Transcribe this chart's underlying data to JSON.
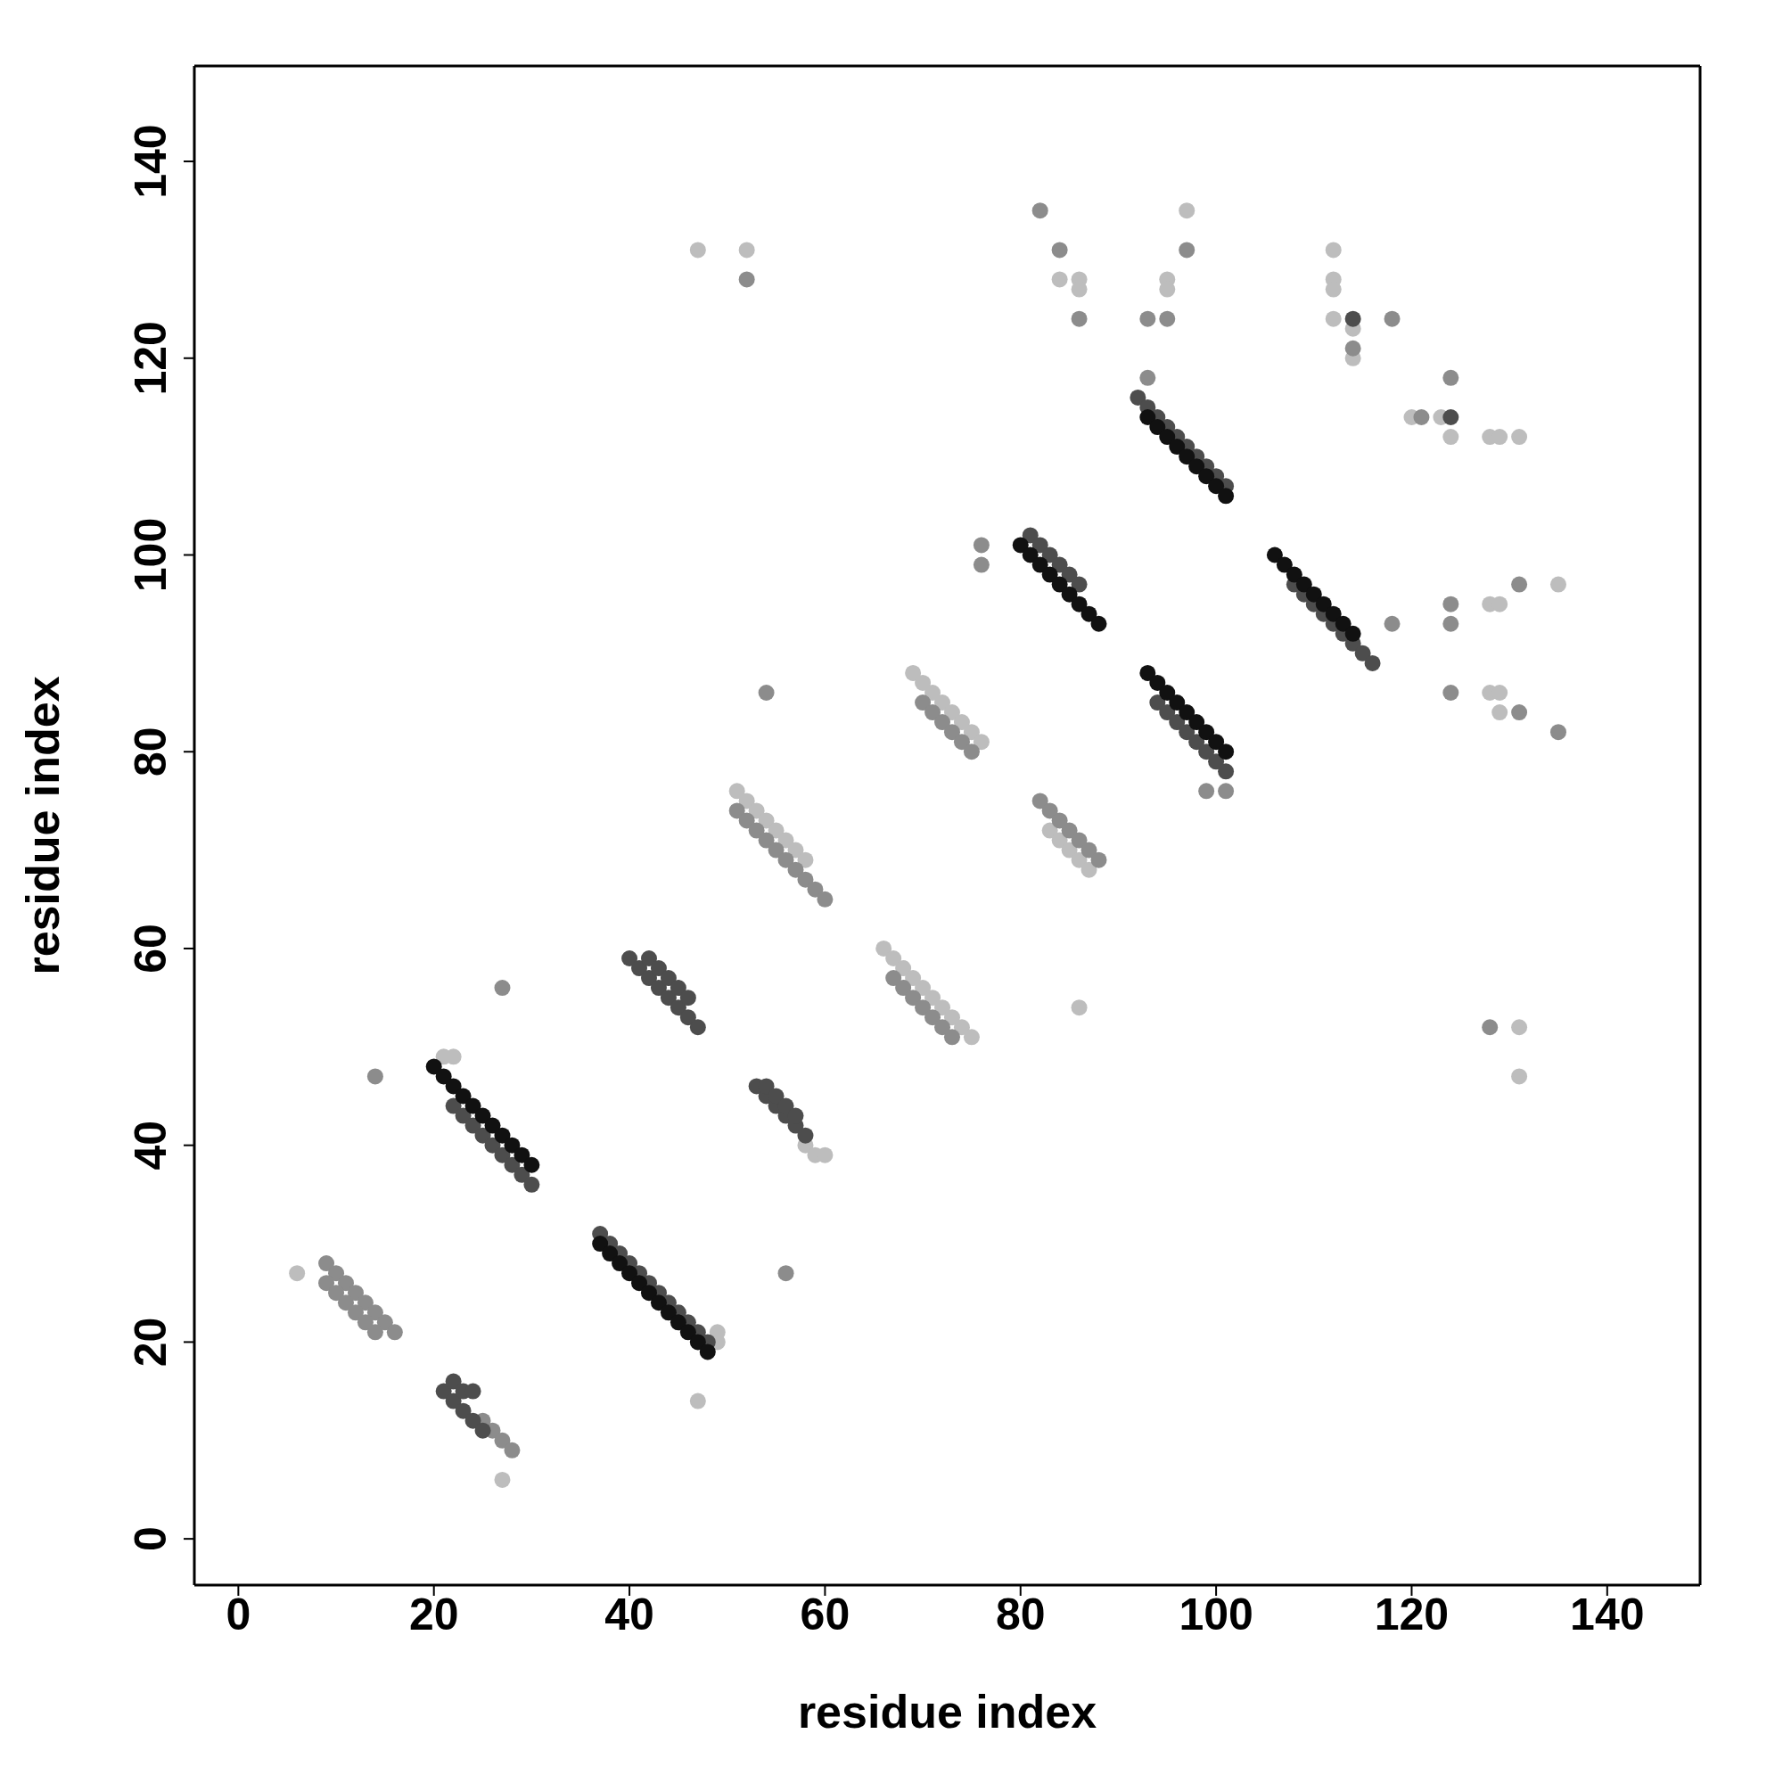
{
  "chart_data": {
    "type": "scatter",
    "xlabel": "residue index",
    "ylabel": "residue index",
    "xlim": [
      -4.5,
      149.5
    ],
    "ylim": [
      -4.7,
      149.7
    ],
    "xticks": [
      0,
      20,
      40,
      60,
      80,
      100,
      120,
      140
    ],
    "yticks": [
      0,
      20,
      40,
      60,
      80,
      100,
      120,
      140
    ],
    "marker": "circle",
    "series": [
      {
        "color": "#bdbdbd",
        "x": [
          51,
          52,
          53,
          54,
          55,
          56,
          57,
          58,
          66,
          67,
          68,
          69,
          70,
          71,
          72,
          73,
          74,
          75,
          69,
          70,
          71,
          72,
          73,
          74,
          75,
          76,
          83,
          84,
          85,
          86,
          87,
          58,
          59,
          60,
          49,
          49,
          21,
          22,
          6,
          27,
          47,
          47,
          52,
          84,
          86,
          86,
          95,
          95,
          97,
          112,
          112,
          112,
          112,
          114,
          114,
          120,
          123,
          124,
          128,
          129,
          131,
          86,
          128,
          129,
          128,
          129,
          129,
          131,
          131,
          135
        ],
        "values": [
          76,
          75,
          74,
          73,
          72,
          71,
          70,
          69,
          60,
          59,
          58,
          57,
          56,
          55,
          54,
          53,
          52,
          51,
          88,
          87,
          86,
          85,
          84,
          83,
          82,
          81,
          72,
          71,
          70,
          69,
          68,
          40,
          39,
          39,
          20,
          21,
          49,
          49,
          27,
          6,
          14,
          131,
          131,
          128,
          128,
          127,
          128,
          127,
          135,
          131,
          128,
          127,
          124,
          123,
          120,
          114,
          114,
          112,
          112,
          112,
          112,
          54,
          95,
          95,
          86,
          86,
          84,
          52,
          47,
          97
        ]
      },
      {
        "color": "#8c8c8c",
        "x": [
          9,
          10,
          11,
          12,
          13,
          14,
          15,
          16,
          9,
          10,
          11,
          12,
          13,
          14,
          25,
          26,
          27,
          28,
          51,
          52,
          53,
          54,
          55,
          56,
          57,
          58,
          59,
          60,
          67,
          68,
          69,
          70,
          71,
          72,
          73,
          70,
          71,
          72,
          73,
          74,
          75,
          82,
          83,
          84,
          85,
          86,
          87,
          88,
          14,
          27,
          56,
          54,
          52,
          82,
          84,
          86,
          93,
          93,
          95,
          97,
          114,
          118,
          124,
          124,
          124,
          124,
          128,
          131,
          131,
          135,
          76,
          76,
          99,
          101,
          118,
          121
        ],
        "values": [
          28,
          27,
          26,
          25,
          24,
          23,
          22,
          21,
          26,
          25,
          24,
          23,
          22,
          21,
          12,
          11,
          10,
          9,
          74,
          73,
          72,
          71,
          70,
          69,
          68,
          67,
          66,
          65,
          57,
          56,
          55,
          54,
          53,
          52,
          51,
          85,
          84,
          83,
          82,
          81,
          80,
          75,
          74,
          73,
          72,
          71,
          70,
          69,
          47,
          56,
          27,
          86,
          128,
          135,
          131,
          124,
          124,
          118,
          124,
          131,
          121,
          124,
          118,
          95,
          93,
          86,
          52,
          84,
          97,
          82,
          99,
          101,
          76,
          76,
          93,
          114
        ]
      },
      {
        "color": "#4d4d4d",
        "x": [
          22,
          23,
          24,
          25,
          26,
          27,
          28,
          29,
          30,
          37,
          38,
          39,
          40,
          41,
          42,
          43,
          44,
          45,
          46,
          47,
          48,
          21,
          22,
          23,
          24,
          25,
          22,
          23,
          24,
          40,
          41,
          42,
          43,
          44,
          45,
          46,
          47,
          42,
          43,
          44,
          45,
          46,
          53,
          54,
          55,
          56,
          57,
          58,
          54,
          55,
          56,
          57,
          81,
          82,
          83,
          84,
          85,
          86,
          94,
          95,
          96,
          97,
          98,
          99,
          100,
          101,
          92,
          93,
          94,
          95,
          96,
          97,
          98,
          99,
          100,
          101,
          108,
          109,
          110,
          111,
          112,
          113,
          114,
          115,
          116,
          114,
          124
        ],
        "values": [
          44,
          43,
          42,
          41,
          40,
          39,
          38,
          37,
          36,
          31,
          30,
          29,
          28,
          27,
          26,
          25,
          24,
          23,
          22,
          21,
          20,
          15,
          14,
          13,
          12,
          11,
          16,
          15,
          15,
          59,
          58,
          57,
          56,
          55,
          54,
          53,
          52,
          59,
          58,
          57,
          56,
          55,
          46,
          45,
          44,
          43,
          42,
          41,
          46,
          45,
          44,
          43,
          102,
          101,
          100,
          99,
          98,
          97,
          85,
          84,
          83,
          82,
          81,
          80,
          79,
          78,
          116,
          115,
          114,
          113,
          112,
          111,
          110,
          109,
          108,
          107,
          97,
          96,
          95,
          94,
          93,
          92,
          91,
          90,
          89,
          124,
          114
        ]
      },
      {
        "color": "#111111",
        "x": [
          20,
          21,
          22,
          23,
          24,
          25,
          26,
          27,
          28,
          29,
          30,
          37,
          38,
          39,
          40,
          41,
          42,
          43,
          44,
          45,
          46,
          47,
          48,
          80,
          81,
          82,
          83,
          84,
          85,
          86,
          87,
          88,
          93,
          94,
          95,
          96,
          97,
          98,
          99,
          100,
          101,
          93,
          94,
          95,
          96,
          97,
          98,
          99,
          100,
          101,
          106,
          107,
          108,
          109,
          110,
          111,
          112,
          113,
          114
        ],
        "values": [
          48,
          47,
          46,
          45,
          44,
          43,
          42,
          41,
          40,
          39,
          38,
          30,
          29,
          28,
          27,
          26,
          25,
          24,
          23,
          22,
          21,
          20,
          19,
          101,
          100,
          99,
          98,
          97,
          96,
          95,
          94,
          93,
          88,
          87,
          86,
          85,
          84,
          83,
          82,
          81,
          80,
          114,
          113,
          112,
          111,
          110,
          109,
          108,
          107,
          106,
          100,
          99,
          98,
          97,
          96,
          95,
          94,
          93,
          92
        ]
      }
    ]
  }
}
